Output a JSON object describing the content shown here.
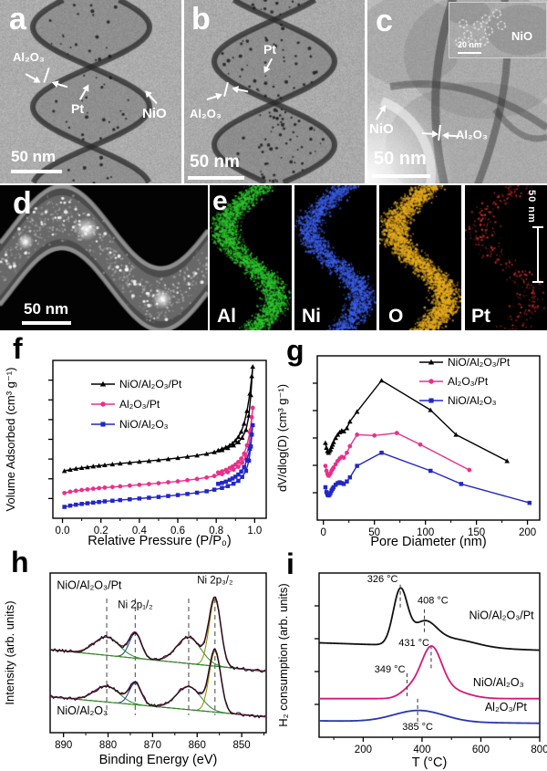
{
  "figure": {
    "panel_letters": {
      "a": "a",
      "b": "b",
      "c": "c",
      "d": "d",
      "e": "e",
      "f": "f",
      "g": "g",
      "h": "h",
      "i": "i"
    }
  },
  "panels": {
    "a": {
      "label_al2o3": "Al₂O₃",
      "label_pt": "Pt",
      "label_nio": "NiO",
      "scalebar": "50 nm"
    },
    "b": {
      "label_pt": "Pt",
      "label_al2o3": "Al₂O₃",
      "scalebar": "50 nm"
    },
    "c": {
      "label_nio": "NiO",
      "label_al2o3": "Al₂O₃",
      "scalebar": "50 nm",
      "inset": {
        "label_nio": "NiO",
        "scalebar": "20 nm"
      }
    },
    "d": {
      "scalebar": "50 nm"
    },
    "e": {
      "elements": [
        "Al",
        "Ni",
        "O",
        "Pt"
      ],
      "map_colors": [
        "#2ec82e",
        "#3c5feb",
        "#e4aa1e",
        "#d72d2d"
      ],
      "scalebar": "50 nm"
    }
  },
  "chart_data": [
    {
      "id": "f",
      "type": "isotherm",
      "xlabel": "Relative Pressure (P/P₀)",
      "ylabel": "Volume Adsorbed (cm³ g⁻¹)",
      "xlim": [
        -0.05,
        1.06
      ],
      "xticks": [
        0,
        0.2,
        0.4,
        0.6,
        0.8,
        1
      ],
      "xtick_labels": [
        "0.0",
        "0.2",
        "0.4",
        "0.6",
        "0.8",
        "1.0"
      ],
      "minor_step": 0.1,
      "ytick_count": 7,
      "legend_pos": [
        100,
        56
      ],
      "legend_spacing": 22,
      "series": [
        {
          "name": "NiO/Al₂O₃/Pt",
          "color": "#000000",
          "marker": "triangle",
          "x": [
            0.01,
            0.04,
            0.07,
            0.1,
            0.13,
            0.16,
            0.19,
            0.22,
            0.26,
            0.3,
            0.35,
            0.4,
            0.45,
            0.5,
            0.55,
            0.6,
            0.65,
            0.7,
            0.75,
            0.79,
            0.83,
            0.86,
            0.89,
            0.915,
            0.935,
            0.955,
            0.97,
            0.98,
            0.99,
            0.985,
            0.975,
            0.96,
            0.945,
            0.93,
            0.915,
            0.9,
            0.885,
            0.87,
            0.85,
            0.83,
            0.81
          ],
          "y": [
            0.3,
            0.308,
            0.314,
            0.319,
            0.324,
            0.329,
            0.333,
            0.337,
            0.342,
            0.347,
            0.352,
            0.358,
            0.363,
            0.369,
            0.375,
            0.382,
            0.39,
            0.398,
            0.408,
            0.419,
            0.432,
            0.445,
            0.462,
            0.482,
            0.51,
            0.56,
            0.65,
            0.78,
            0.96,
            0.9,
            0.79,
            0.68,
            0.6,
            0.548,
            0.515,
            0.492,
            0.475,
            0.462,
            0.45,
            0.44,
            0.43
          ]
        },
        {
          "name": "Al₂O₃/Pt",
          "color": "#e8308a",
          "marker": "circle",
          "x": [
            0.01,
            0.04,
            0.07,
            0.1,
            0.13,
            0.16,
            0.19,
            0.22,
            0.26,
            0.3,
            0.35,
            0.4,
            0.45,
            0.5,
            0.55,
            0.6,
            0.65,
            0.7,
            0.75,
            0.79,
            0.83,
            0.86,
            0.89,
            0.915,
            0.935,
            0.955,
            0.97,
            0.98,
            0.99,
            0.985,
            0.975,
            0.96,
            0.945,
            0.93,
            0.915,
            0.9,
            0.885,
            0.87,
            0.85,
            0.83,
            0.81
          ],
          "y": [
            0.16,
            0.168,
            0.174,
            0.179,
            0.183,
            0.187,
            0.191,
            0.194,
            0.198,
            0.202,
            0.207,
            0.212,
            0.217,
            0.222,
            0.228,
            0.234,
            0.241,
            0.249,
            0.258,
            0.268,
            0.28,
            0.292,
            0.308,
            0.326,
            0.352,
            0.392,
            0.46,
            0.56,
            0.7,
            0.64,
            0.545,
            0.462,
            0.41,
            0.378,
            0.356,
            0.34,
            0.328,
            0.318,
            0.306,
            0.297,
            0.29
          ]
        },
        {
          "name": "NiO/Al₂O₃",
          "color": "#2126c8",
          "marker": "square",
          "x": [
            0.01,
            0.04,
            0.07,
            0.1,
            0.13,
            0.16,
            0.19,
            0.22,
            0.26,
            0.3,
            0.35,
            0.4,
            0.45,
            0.5,
            0.55,
            0.6,
            0.65,
            0.7,
            0.75,
            0.79,
            0.83,
            0.86,
            0.89,
            0.915,
            0.935,
            0.955,
            0.97,
            0.98,
            0.99,
            0.985,
            0.975,
            0.96,
            0.945,
            0.93,
            0.915,
            0.9,
            0.885,
            0.87,
            0.85,
            0.83,
            0.81
          ],
          "y": [
            0.072,
            0.08,
            0.086,
            0.091,
            0.095,
            0.099,
            0.103,
            0.107,
            0.111,
            0.115,
            0.12,
            0.125,
            0.13,
            0.135,
            0.141,
            0.147,
            0.154,
            0.162,
            0.171,
            0.181,
            0.192,
            0.204,
            0.219,
            0.237,
            0.262,
            0.3,
            0.365,
            0.455,
            0.59,
            0.53,
            0.44,
            0.368,
            0.324,
            0.296,
            0.277,
            0.263,
            0.252,
            0.243,
            0.232,
            0.224,
            0.218
          ]
        }
      ]
    },
    {
      "id": "g",
      "type": "line",
      "xlabel": "Pore Diameter (nm)",
      "ylabel": "dV/dlog(D) (cm³ g⁻¹)",
      "xlim": [
        -6,
        212
      ],
      "xticks": [
        0,
        50,
        100,
        150,
        200
      ],
      "xtick_labels": [
        "0",
        "50",
        "100",
        "150",
        "200"
      ],
      "minor_step": 25,
      "ytick_count": 5,
      "legend_pos": [
        160,
        32
      ],
      "legend_spacing": 21,
      "series": [
        {
          "name": "NiO/Al₂O₃/Pt",
          "color": "#000000",
          "marker": "triangle",
          "x": [
            2,
            3,
            4,
            5,
            6,
            7,
            8,
            9,
            10,
            12,
            14,
            16,
            18,
            20,
            23,
            26,
            33,
            57,
            105,
            130,
            180
          ],
          "y": [
            0.47,
            0.44,
            0.42,
            0.41,
            0.42,
            0.43,
            0.445,
            0.46,
            0.475,
            0.5,
            0.52,
            0.535,
            0.545,
            0.54,
            0.56,
            0.6,
            0.66,
            0.85,
            0.67,
            0.52,
            0.36
          ]
        },
        {
          "name": "Al₂O₃/Pt",
          "color": "#e8308a",
          "marker": "circle",
          "x": [
            2,
            3,
            4,
            5,
            6,
            7,
            8,
            9,
            10,
            12,
            14,
            16,
            18,
            20,
            23,
            26,
            33,
            50,
            72,
            95,
            143
          ],
          "y": [
            0.33,
            0.3,
            0.28,
            0.27,
            0.275,
            0.285,
            0.3,
            0.31,
            0.32,
            0.34,
            0.36,
            0.375,
            0.385,
            0.38,
            0.41,
            0.45,
            0.52,
            0.515,
            0.53,
            0.46,
            0.305
          ]
        },
        {
          "name": "NiO/Al₂O₃",
          "color": "#2126c8",
          "marker": "square",
          "x": [
            2,
            3,
            4,
            5,
            6,
            7,
            8,
            9,
            10,
            12,
            14,
            16,
            18,
            20,
            23,
            26,
            33,
            57,
            105,
            135,
            202
          ],
          "y": [
            0.2,
            0.17,
            0.155,
            0.15,
            0.155,
            0.165,
            0.18,
            0.19,
            0.2,
            0.215,
            0.225,
            0.23,
            0.225,
            0.22,
            0.235,
            0.26,
            0.33,
            0.41,
            0.3,
            0.22,
            0.105
          ]
        }
      ]
    },
    {
      "id": "h",
      "type": "xps",
      "xlabel": "Binding Energy (eV)",
      "ylabel": "Intensity (arb. units)",
      "xlim": [
        893,
        844.5
      ],
      "xticks": [
        890,
        880,
        870,
        860,
        850
      ],
      "xtick_labels": [
        "890",
        "880",
        "870",
        "860",
        "850"
      ],
      "minor_step": 5,
      "ytick_count": 0,
      "dash_lines": [
        880.3,
        873.9,
        861.9,
        856.0
      ],
      "dash_span": [
        0.11,
        0.84
      ],
      "labels": [
        {
          "text": "NiO/Al₂O₃/Pt",
          "x": 891.5,
          "y": 0.9,
          "anchor": "start",
          "size": 12.5
        },
        {
          "text": "Ni 2p₁/₂",
          "x": 877.8,
          "y": 0.78,
          "anchor": "start",
          "size": 11.5
        },
        {
          "text": "Ni 2p₃/₂",
          "x": 860.0,
          "y": 0.935,
          "anchor": "start",
          "size": 11.5
        },
        {
          "text": "NiO/Al₂O₃",
          "x": 891.5,
          "y": 0.115,
          "anchor": "start",
          "size": 12.5
        }
      ],
      "colors": {
        "data": "#111111",
        "envelope": "#7b1f4e",
        "satellite": "#2e8b2e",
        "main": "#8a8a00",
        "alt": "#1a3a8a",
        "baseline": "#2e8b2e"
      },
      "spectra": [
        {
          "name": "NiO/Al₂O₃/Pt",
          "base": [
            0.52,
            0.0028
          ],
          "peaks": [
            {
              "c": 880.3,
              "w": 2.8,
              "a": 0.115,
              "color": "satellite"
            },
            {
              "c": 873.9,
              "w": 1.35,
              "a": 0.155,
              "color": "alt"
            },
            {
              "c": 861.9,
              "w": 2.7,
              "a": 0.165,
              "color": "satellite"
            },
            {
              "c": 856.0,
              "w": 1.3,
              "a": 0.42,
              "color": "main"
            }
          ]
        },
        {
          "name": "NiO/Al₂O₃",
          "base": [
            0.225,
            0.0026
          ],
          "peaks": [
            {
              "c": 880.3,
              "w": 2.8,
              "a": 0.1,
              "color": "satellite"
            },
            {
              "c": 873.9,
              "w": 1.35,
              "a": 0.135,
              "color": "alt"
            },
            {
              "c": 861.9,
              "w": 2.7,
              "a": 0.145,
              "color": "satellite"
            },
            {
              "c": 856.0,
              "w": 1.3,
              "a": 0.38,
              "color": "main"
            }
          ]
        }
      ]
    },
    {
      "id": "i",
      "type": "tpr",
      "xlabel": "T (°C)",
      "ylabel": "H₂ consumption (arb. units)",
      "xlim": [
        50,
        800
      ],
      "xticks": [
        200,
        400,
        600,
        800
      ],
      "xtick_labels": [
        "200",
        "400",
        "600",
        "800"
      ],
      "minor_step": 100,
      "ytick_count": 4,
      "curves": [
        {
          "name": "NiO/Al₂O₃/Pt",
          "color": "#111111",
          "label_x": 670,
          "label_y": 0.72,
          "base": 0.575,
          "slope": -6e-05,
          "peaks": [
            [
              326,
              24,
              0.33
            ],
            [
              408,
              40,
              0.13
            ],
            [
              500,
              80,
              0.05
            ]
          ]
        },
        {
          "name": "NiO/Al₂O₃",
          "color": "#d6187a",
          "label_x": 660,
          "label_y": 0.31,
          "base": 0.235,
          "slope": 0,
          "peaks": [
            [
              431,
              34,
              0.27
            ],
            [
              360,
              32,
              0.05
            ],
            [
              478,
              65,
              0.06
            ]
          ]
        },
        {
          "name": "Al₂O₃/Pt",
          "color": "#2a35b0",
          "label_x": 685,
          "label_y": 0.16,
          "base": 0.1,
          "slope": -2e-05,
          "peaks": [
            [
              390,
              85,
              0.07
            ]
          ]
        }
      ],
      "annotations": [
        {
          "x": 326,
          "y0": 0.79,
          "y1": 0.94,
          "label": "326 °C",
          "lx": 318,
          "ly": 0.945,
          "anchor": "end"
        },
        {
          "x": 408,
          "y0": 0.64,
          "y1": 0.785,
          "label": "408 °C",
          "lx": 437,
          "ly": 0.815,
          "anchor": "middle"
        },
        {
          "x": 431,
          "y0": 0.42,
          "y1": 0.55,
          "label": "431 °C",
          "lx": 425,
          "ly": 0.555,
          "anchor": "end"
        },
        {
          "x": 349,
          "y0": 0.25,
          "y1": 0.39,
          "label": "349 °C",
          "lx": 343,
          "ly": 0.395,
          "anchor": "end"
        },
        {
          "x": 385,
          "y0": 0.095,
          "y1": 0.24,
          "label": "385 °C",
          "lx": 385,
          "ly": 0.045,
          "anchor": "middle"
        }
      ]
    }
  ]
}
